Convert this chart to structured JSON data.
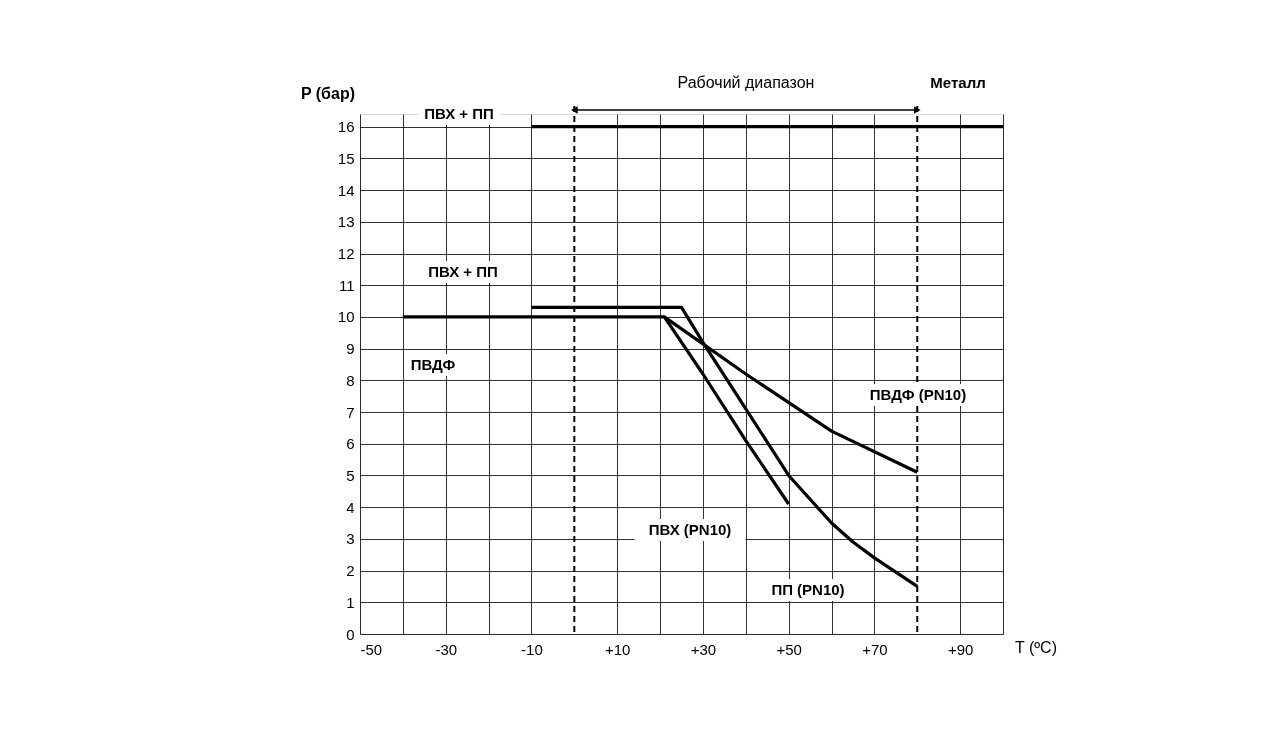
{
  "chart_data": {
    "type": "line",
    "xlabel": "T (ºC)",
    "ylabel": "P (бар)",
    "xlim": [
      -50,
      100
    ],
    "ylim": [
      0,
      16.4
    ],
    "xticks": [
      {
        "value": -50,
        "label": "-50"
      },
      {
        "value": -40,
        "label": null
      },
      {
        "value": -30,
        "label": "-30"
      },
      {
        "value": -20,
        "label": null
      },
      {
        "value": -10,
        "label": "-10"
      },
      {
        "value": 0,
        "label": null
      },
      {
        "value": 10,
        "label": "+10"
      },
      {
        "value": 20,
        "label": null
      },
      {
        "value": 30,
        "label": "+30"
      },
      {
        "value": 40,
        "label": null
      },
      {
        "value": 50,
        "label": "+50"
      },
      {
        "value": 60,
        "label": null
      },
      {
        "value": 70,
        "label": "+70"
      },
      {
        "value": 80,
        "label": null
      },
      {
        "value": 90,
        "label": "+90"
      },
      {
        "value": 100,
        "label": null
      }
    ],
    "yticks": [
      0,
      1,
      2,
      3,
      4,
      5,
      6,
      7,
      8,
      9,
      10,
      11,
      12,
      13,
      14,
      15,
      16
    ],
    "grid": true,
    "legend": false,
    "marker": "none",
    "line_style": "solid",
    "series": [
      {
        "color": "#000000",
        "x": [
          -10,
          100
        ],
        "values": [
          16,
          16
        ]
      },
      {
        "color": "#000000",
        "x": [
          -40,
          21,
          40,
          60,
          80
        ],
        "values": [
          10,
          10,
          8.2,
          6.4,
          5.1
        ]
      },
      {
        "color": "#000000",
        "x": [
          -10,
          25,
          30,
          40,
          50,
          60,
          65,
          70,
          80
        ],
        "values": [
          10.3,
          10.3,
          9.2,
          7.1,
          5.0,
          3.5,
          2.9,
          2.4,
          1.5
        ]
      },
      {
        "color": "#000000",
        "x": [
          21,
          30,
          40,
          50
        ],
        "values": [
          10,
          8.2,
          6.1,
          4.1
        ]
      }
    ],
    "ref_lines": [
      {
        "axis": "x",
        "value": 0,
        "line_style": "dashed",
        "color": "#000000"
      },
      {
        "axis": "x",
        "value": 80,
        "line_style": "dashed",
        "color": "#000000"
      }
    ],
    "annotations": [
      "Рабочий диапазон",
      "Металл",
      "ПВХ + ПП",
      "ПВХ  + ПП",
      "ПВДФ",
      "ПВДФ  (PN10)",
      "ПВХ  (PN10)",
      "ПП  (PN10)"
    ]
  }
}
